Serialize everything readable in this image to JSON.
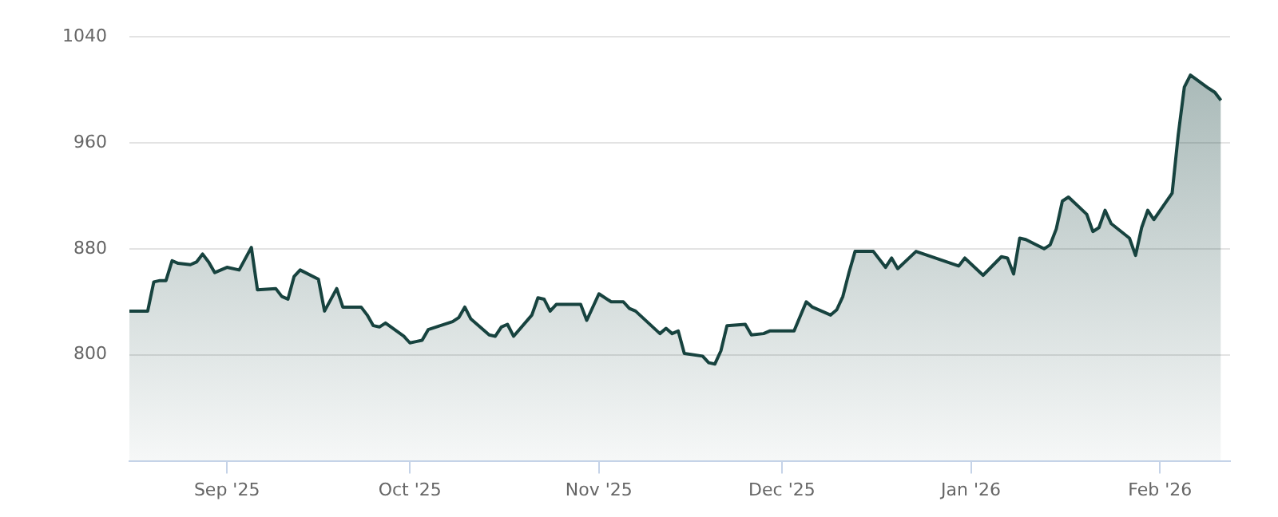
{
  "chart_data": {
    "type": "area",
    "color": "#17433f",
    "grid": "y",
    "legend": false,
    "marker": "none",
    "line_style": "solid",
    "ylim": [
      720,
      1040
    ],
    "yticks": [
      800,
      880,
      960,
      1040
    ],
    "xlim": [
      "2025-08-16",
      "2026-02-12T12:00"
    ],
    "xticks": [
      {
        "value": "2025-09-01",
        "label": "Sep '25"
      },
      {
        "value": "2025-10-01",
        "label": "Oct '25"
      },
      {
        "value": "2025-11-01",
        "label": "Nov '25"
      },
      {
        "value": "2025-12-01",
        "label": "Dec '25"
      },
      {
        "value": "2026-01-01",
        "label": "Jan '26"
      },
      {
        "value": "2026-02-01",
        "label": "Feb '26"
      }
    ],
    "x": [
      "2025-08-16",
      "2025-08-19",
      "2025-08-20",
      "2025-08-21",
      "2025-08-22",
      "2025-08-23",
      "2025-08-24",
      "2025-08-26",
      "2025-08-27",
      "2025-08-28",
      "2025-08-29",
      "2025-08-30",
      "2025-08-31",
      "2025-09-01",
      "2025-09-03",
      "2025-09-05",
      "2025-09-06",
      "2025-09-09",
      "2025-09-10",
      "2025-09-11",
      "2025-09-12",
      "2025-09-13",
      "2025-09-16",
      "2025-09-17",
      "2025-09-19",
      "2025-09-20",
      "2025-09-23",
      "2025-09-24",
      "2025-09-25",
      "2025-09-26",
      "2025-09-27",
      "2025-09-30",
      "2025-10-01",
      "2025-10-02",
      "2025-10-03",
      "2025-10-04",
      "2025-10-08",
      "2025-10-09",
      "2025-10-10",
      "2025-10-11",
      "2025-10-14",
      "2025-10-15",
      "2025-10-16",
      "2025-10-17",
      "2025-10-18",
      "2025-10-21",
      "2025-10-22",
      "2025-10-23",
      "2025-10-24",
      "2025-10-25",
      "2025-10-29",
      "2025-10-30",
      "2025-11-01",
      "2025-11-03",
      "2025-11-05",
      "2025-11-06",
      "2025-11-07",
      "2025-11-11",
      "2025-11-12",
      "2025-11-13",
      "2025-11-14",
      "2025-11-15",
      "2025-11-18",
      "2025-11-19",
      "2025-11-20",
      "2025-11-21",
      "2025-11-22",
      "2025-11-25",
      "2025-11-26",
      "2025-11-28",
      "2025-11-29",
      "2025-12-03",
      "2025-12-05",
      "2025-12-06",
      "2025-12-09",
      "2025-12-10",
      "2025-12-11",
      "2025-12-12",
      "2025-12-13",
      "2025-12-16",
      "2025-12-18",
      "2025-12-19",
      "2025-12-20",
      "2025-12-23",
      "2025-12-30",
      "2025-12-31",
      "2026-01-03",
      "2026-01-06",
      "2026-01-07",
      "2026-01-08",
      "2026-01-09",
      "2026-01-10",
      "2026-01-13",
      "2026-01-14",
      "2026-01-15",
      "2026-01-16",
      "2026-01-17",
      "2026-01-20",
      "2026-01-21",
      "2026-01-22",
      "2026-01-23",
      "2026-01-24",
      "2026-01-27",
      "2026-01-28",
      "2026-01-29",
      "2026-01-30",
      "2026-01-31",
      "2026-02-03",
      "2026-02-04",
      "2026-02-05",
      "2026-02-06",
      "2026-02-09",
      "2026-02-10",
      "2026-02-11"
    ],
    "values": [
      833,
      833,
      855,
      856,
      856,
      871,
      869,
      868,
      870,
      876,
      870,
      862,
      864,
      866,
      864,
      881,
      849,
      850,
      844,
      842,
      859,
      864,
      857,
      833,
      850,
      836,
      836,
      830,
      822,
      821,
      824,
      814,
      809,
      810,
      811,
      819,
      825,
      828,
      836,
      827,
      815,
      814,
      821,
      823,
      814,
      830,
      843,
      842,
      833,
      838,
      838,
      826,
      846,
      840,
      840,
      835,
      833,
      816,
      820,
      816,
      818,
      801,
      799,
      794,
      793,
      803,
      822,
      823,
      815,
      816,
      818,
      818,
      840,
      836,
      830,
      834,
      844,
      862,
      878,
      878,
      866,
      873,
      865,
      878,
      867,
      873,
      860,
      874,
      873,
      861,
      888,
      887,
      880,
      883,
      895,
      916,
      919,
      906,
      893,
      896,
      909,
      899,
      888,
      875,
      896,
      909,
      902,
      922,
      966,
      1002,
      1011,
      1001,
      998,
      992
    ]
  }
}
